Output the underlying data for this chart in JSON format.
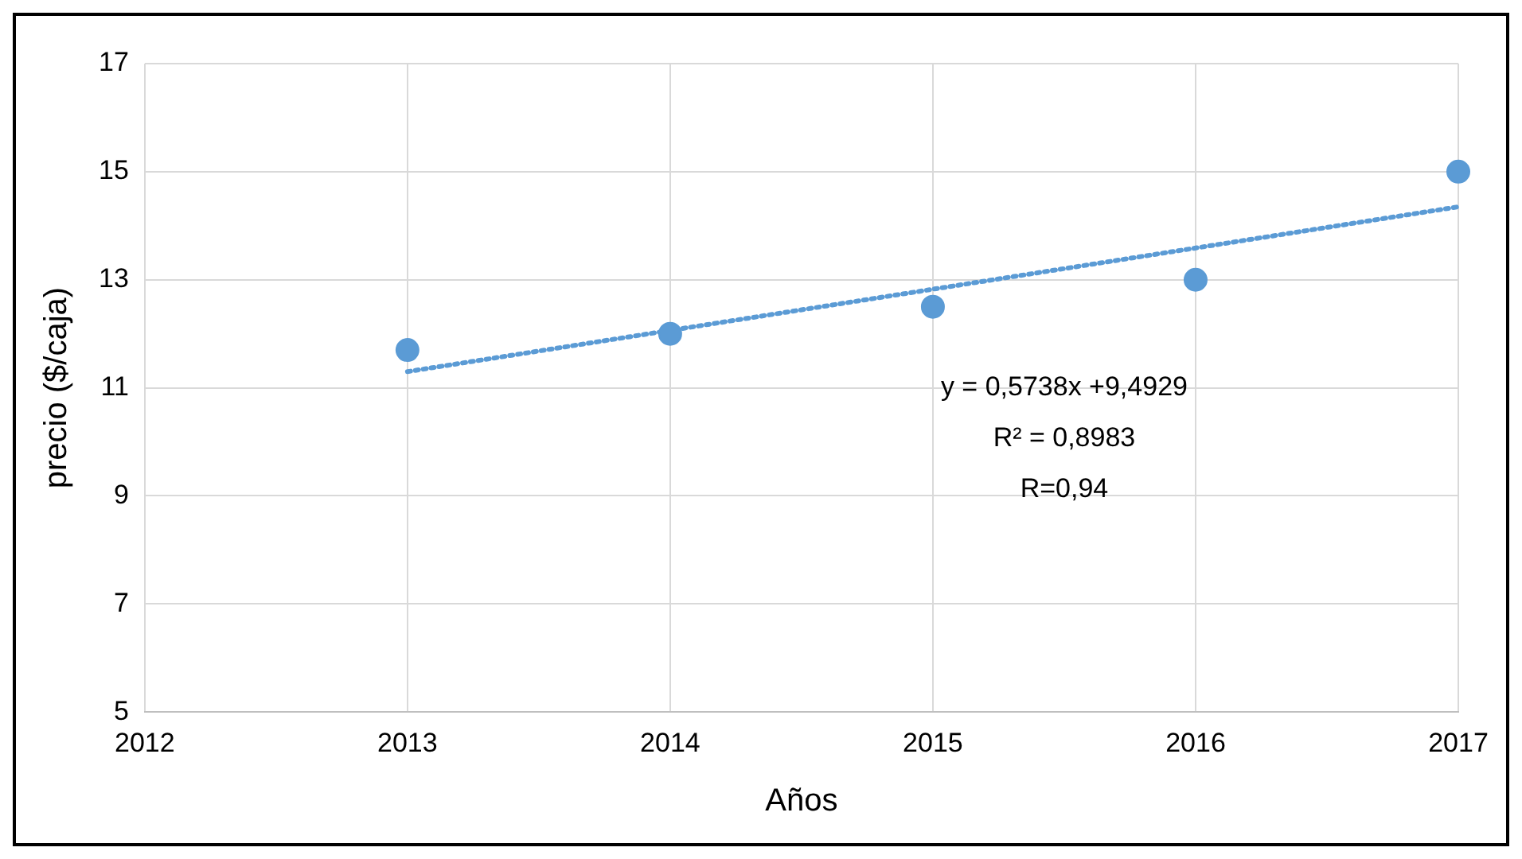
{
  "chart_data": {
    "type": "scatter",
    "xlabel": "Años",
    "ylabel": "precio ($/caja)",
    "xlim": [
      2012,
      2017
    ],
    "xticks": [
      2012,
      2013,
      2014,
      2015,
      2016,
      2017
    ],
    "ylim": [
      5,
      17
    ],
    "yticks": [
      5,
      7,
      9,
      11,
      13,
      15,
      17
    ],
    "grid": true,
    "legend": false,
    "marker": "circle",
    "series": [
      {
        "type": "scatter",
        "color": "#5b9bd5",
        "x": [
          2013,
          2014,
          2015,
          2016,
          2017
        ],
        "values": [
          11.7,
          12.0,
          12.5,
          13.0,
          15.0
        ]
      },
      {
        "type": "line",
        "color": "#5b9bd5",
        "marker": "none",
        "line_style": "dotted",
        "x": [
          2013,
          2017
        ],
        "values": [
          11.3,
          14.35
        ]
      }
    ],
    "annotations": [
      "y = 0,5738x +9,4929",
      "R² = 0,8983",
      "R=0,94"
    ]
  }
}
